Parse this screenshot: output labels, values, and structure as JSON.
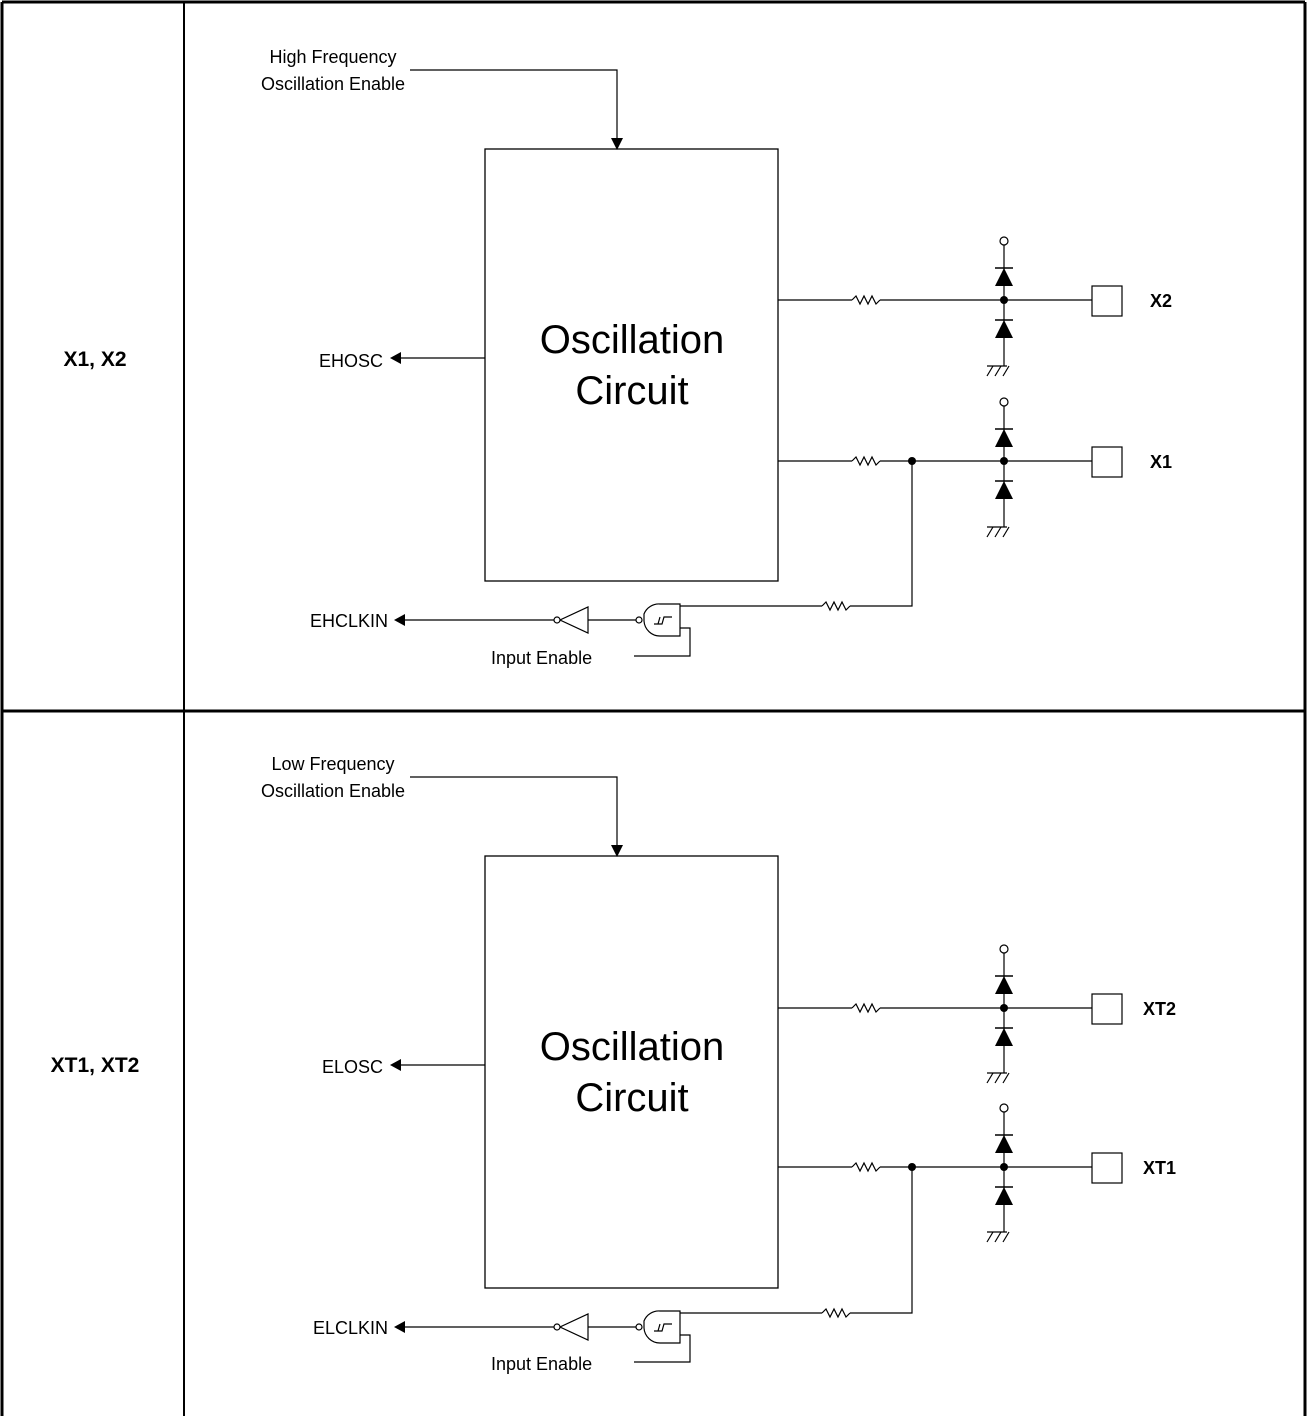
{
  "table": {
    "rows": [
      {
        "pins": "X1, X2",
        "enable_line1": "High Frequency",
        "enable_line2": "Oscillation Enable",
        "block_line1": "Oscillation",
        "block_line2": "Circuit",
        "osc_out": "EHOSC",
        "clk_out": "EHCLKIN",
        "input_enable": "Input Enable",
        "pin_top": "X2",
        "pin_bottom": "X1"
      },
      {
        "pins": "XT1, XT2",
        "enable_line1": "Low Frequency",
        "enable_line2": "Oscillation Enable",
        "block_line1": "Oscillation",
        "block_line2": "Circuit",
        "osc_out": "ELOSC",
        "clk_out": "ELCLKIN",
        "input_enable": "Input Enable",
        "pin_top": "XT2",
        "pin_bottom": "XT1"
      }
    ]
  }
}
